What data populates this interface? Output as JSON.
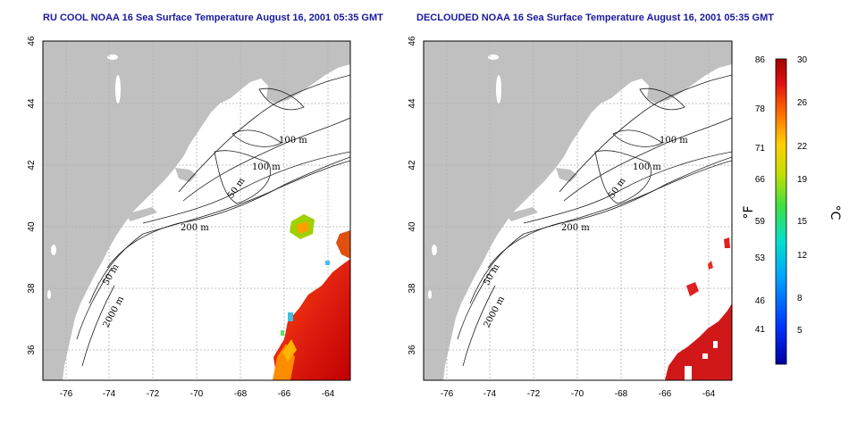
{
  "panels": [
    {
      "title": "RU COOL NOAA 16 Sea Surface Temperature August 16, 2001 05:35 GMT",
      "contour_labels": [
        "100 m",
        "100 m",
        "50 m",
        "200 m",
        "50 m",
        "2000 m"
      ]
    },
    {
      "title": "DECLOUDED NOAA 16 Sea Surface Temperature August 16, 2001 05:35 GMT",
      "contour_labels": [
        "100 m",
        "100 m",
        "50 m",
        "200 m",
        "50 m",
        "2000 m"
      ]
    }
  ],
  "axes": {
    "lon_ticks": [
      "-76",
      "-74",
      "-72",
      "-70",
      "-68",
      "-66",
      "-64"
    ],
    "lat_ticks": [
      "46",
      "44",
      "42",
      "40",
      "38",
      "36"
    ]
  },
  "colorbar": {
    "fahrenheit_ticks": [
      "86",
      "78",
      "71",
      "66",
      "59",
      "53",
      "46",
      "41"
    ],
    "celsius_ticks": [
      "30",
      "26",
      "22",
      "19",
      "15",
      "12",
      "8",
      "5"
    ],
    "fahrenheit_unit": "°F",
    "celsius_unit": "°C"
  },
  "colors": {
    "land": "#c0c0c0",
    "ocean": "#ffffff",
    "title": "#1a1aa0",
    "grid": "#b0b0b0"
  }
}
